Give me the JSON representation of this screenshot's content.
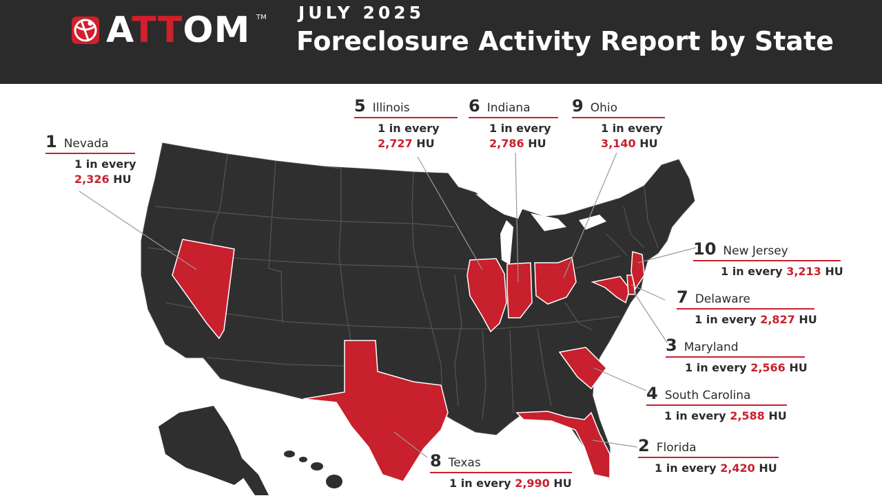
{
  "brand": {
    "logo_prefix": "A",
    "logo_tt": "TT",
    "logo_suffix": "OM",
    "trademark": "TM"
  },
  "header": {
    "subtitle": "JULY 2025",
    "title": "Foreclosure Activity Report by State"
  },
  "colors": {
    "header_bg": "#2b2b2b",
    "map_dark": "#2f2f2f",
    "highlight": "#c8202d"
  },
  "callouts": [
    {
      "rank": "1",
      "state": "Nevada",
      "prefix": "1 in every",
      "value": "2,326",
      "unit": "HU"
    },
    {
      "rank": "2",
      "state": "Florida",
      "prefix": "1 in every",
      "value": "2,420",
      "unit": "HU"
    },
    {
      "rank": "3",
      "state": "Maryland",
      "prefix": "1 in every",
      "value": "2,566",
      "unit": "HU"
    },
    {
      "rank": "4",
      "state": "South Carolina",
      "prefix": "1 in every",
      "value": "2,588",
      "unit": "HU"
    },
    {
      "rank": "5",
      "state": "Illinois",
      "prefix": "1 in every",
      "value": "2,727",
      "unit": "HU"
    },
    {
      "rank": "6",
      "state": "Indiana",
      "prefix": "1 in every",
      "value": "2,786",
      "unit": "HU"
    },
    {
      "rank": "7",
      "state": "Delaware",
      "prefix": "1 in every",
      "value": "2,827",
      "unit": "HU"
    },
    {
      "rank": "8",
      "state": "Texas",
      "prefix": "1 in every",
      "value": "2,990",
      "unit": "HU"
    },
    {
      "rank": "9",
      "state": "Ohio",
      "prefix": "1 in every",
      "value": "3,140",
      "unit": "HU"
    },
    {
      "rank": "10",
      "state": "New Jersey",
      "prefix": "1 in every",
      "value": "3,213",
      "unit": "HU"
    }
  ]
}
